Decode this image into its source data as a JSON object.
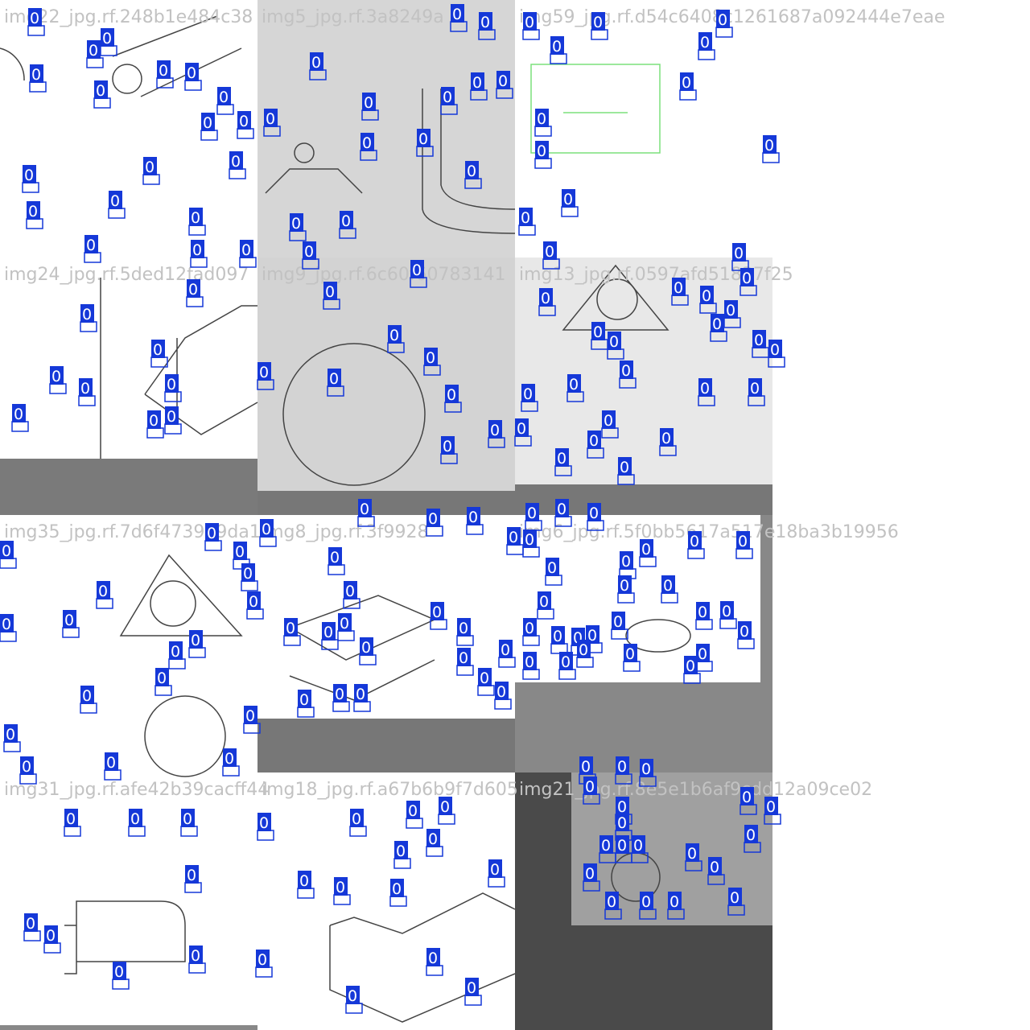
{
  "tiles": [
    {
      "title": "img22_jpg.rf.248b1e484c38",
      "labels": [
        "0",
        "0",
        "0",
        "0",
        "0",
        "0",
        "0",
        "0",
        "0",
        "0",
        "0",
        "0",
        "0",
        "0",
        "0",
        "0",
        "0",
        "0",
        "0"
      ]
    },
    {
      "title": "img5_jpg.rf.3a8249a",
      "labels": [
        "0",
        "0",
        "0",
        "0",
        "0",
        "0",
        "0",
        "0",
        "0",
        "0",
        "0",
        "0",
        "0"
      ]
    },
    {
      "title": "img59_jpg.rf.d54c6408c1261687a092444e7eae",
      "labels": [
        "0",
        "0",
        "0",
        "0",
        "0",
        "0",
        "0",
        "0",
        "0",
        "0",
        "0"
      ]
    },
    {
      "title": "img24_jpg.rf.5ded12fad097",
      "labels": [
        "0",
        "0",
        "0",
        "0",
        "0",
        "0",
        "0",
        "0",
        "0",
        "0"
      ]
    },
    {
      "title": "img9_jpg.rf.6c60f60783141",
      "labels": [
        "0",
        "0",
        "0",
        "0",
        "0",
        "0",
        "0",
        "0",
        "0"
      ]
    },
    {
      "title": "img13_jpg.rf.0597afd51837f25",
      "labels": [
        "0",
        "0",
        "0",
        "0",
        "0",
        "0",
        "0",
        "0",
        "0",
        "0",
        "0",
        "0",
        "0",
        "0",
        "0",
        "0",
        "0",
        "0",
        "0",
        "0",
        "0",
        "0",
        "0"
      ]
    },
    {
      "title": "img35_jpg.rf.7d6f473929da1",
      "labels": [
        "0",
        "0",
        "0",
        "0",
        "0",
        "0",
        "0",
        "0",
        "0",
        "0",
        "0",
        "0",
        "0",
        "0",
        "0",
        "0",
        "0"
      ]
    },
    {
      "title": "img8_jpg.rf.3f9928",
      "labels": [
        "0",
        "0",
        "0",
        "0",
        "0",
        "0",
        "0",
        "0",
        "0",
        "0",
        "0",
        "0",
        "0",
        "0",
        "0",
        "0",
        "0",
        "0",
        "0",
        "0"
      ]
    },
    {
      "title": "img6_jpg.rf.5f0bb5617a517e18ba3b19956",
      "labels": [
        "0",
        "0",
        "0",
        "0",
        "0",
        "0",
        "0",
        "0",
        "0",
        "0",
        "0",
        "0",
        "0",
        "0",
        "0",
        "0",
        "0",
        "0",
        "0",
        "0",
        "0",
        "0",
        "0",
        "0",
        "0",
        "0"
      ]
    },
    {
      "title": "img31_jpg.rf.afe42b39cacff44",
      "labels": [
        "0",
        "0",
        "0",
        "0",
        "0",
        "0",
        "0",
        "0",
        "0"
      ]
    },
    {
      "title": "img18_jpg.rf.a67b6b9f7d605",
      "labels": [
        "0",
        "0",
        "0",
        "0",
        "0",
        "0",
        "0",
        "0",
        "0",
        "0",
        "0",
        "0",
        "0"
      ]
    },
    {
      "title": "img21_jpg.rf.8e5e1b6af9cdd12a09ce02",
      "labels": [
        "0",
        "0",
        "0",
        "0",
        "0",
        "0",
        "0",
        "0",
        "0",
        "0",
        "0",
        "0",
        "0",
        "0",
        "0",
        "0",
        "0",
        "0",
        "0"
      ]
    }
  ]
}
